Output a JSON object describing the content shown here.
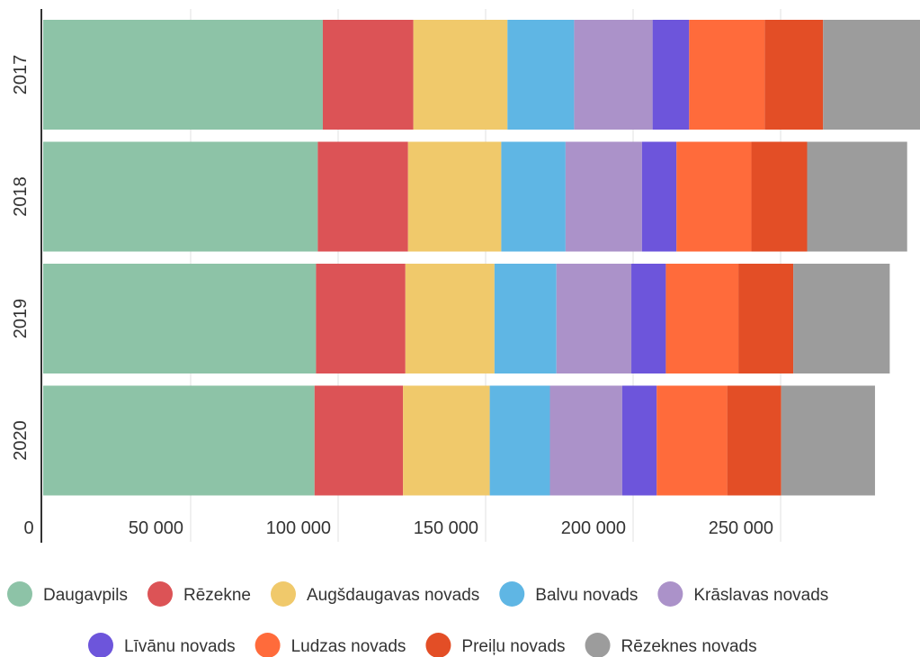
{
  "chart_data": {
    "type": "bar",
    "orientation": "horizontal",
    "stacked": true,
    "categories": [
      "2017",
      "2018",
      "2019",
      "2020"
    ],
    "x_ticks": [
      0,
      50000,
      100000,
      150000,
      200000,
      250000
    ],
    "x_tick_labels": [
      "0",
      "50 000",
      "100 000",
      "150 000",
      "200 000",
      "250 000"
    ],
    "xlim": [
      0,
      300000
    ],
    "grid": true,
    "legend_position": "bottom",
    "series": [
      {
        "name": "Daugavpils",
        "color": "#8dc3a7",
        "values": [
          94800,
          93100,
          92500,
          92000
        ]
      },
      {
        "name": "Rēzekne",
        "color": "#dc5356",
        "values": [
          30700,
          30600,
          30300,
          30000
        ]
      },
      {
        "name": "Augšdaugavas novads",
        "color": "#f0c96b",
        "values": [
          31900,
          31600,
          30200,
          29400
        ]
      },
      {
        "name": "Balvu novads",
        "color": "#5fb6e4",
        "values": [
          22600,
          21800,
          21000,
          20400
        ]
      },
      {
        "name": "Krāslavas novads",
        "color": "#ab92c9",
        "values": [
          26600,
          25900,
          25400,
          24500
        ]
      },
      {
        "name": "Līvānu novads",
        "color": "#6d55db",
        "values": [
          12400,
          11700,
          11700,
          11700
        ]
      },
      {
        "name": "Ludzas novads",
        "color": "#ff6b3b",
        "values": [
          25600,
          25400,
          24600,
          23900
        ]
      },
      {
        "name": "Preiļu novads",
        "color": "#e34e26",
        "values": [
          19800,
          18900,
          18600,
          18300
        ]
      },
      {
        "name": "Rēzeknes novads",
        "color": "#9c9c9c",
        "values": [
          34300,
          33900,
          32700,
          31800
        ]
      }
    ]
  }
}
